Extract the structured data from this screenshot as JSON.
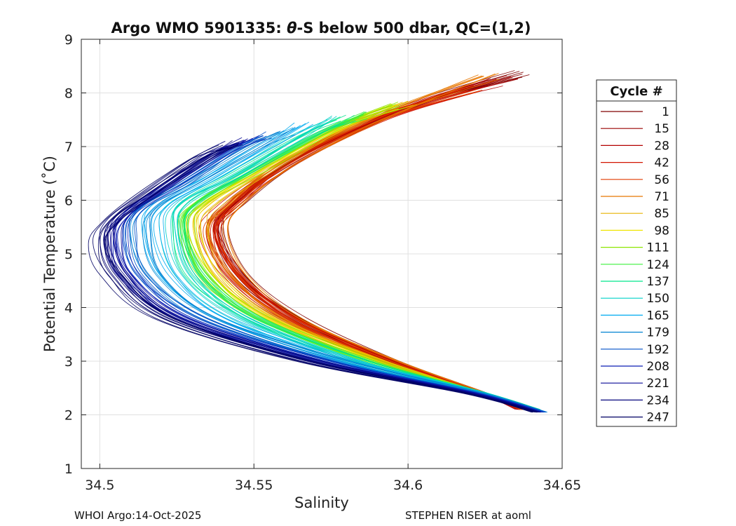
{
  "chart_data": {
    "type": "line",
    "title_prefix": "Argo WMO 5901335: ",
    "title_symbol": "θ",
    "title_suffix": "-S below 500 dbar,  QC=(1,2)",
    "xlabel": "Salinity",
    "ylabel": "Potential Temperature (˚C)",
    "xlim": [
      34.494,
      34.65
    ],
    "ylim": [
      1,
      9
    ],
    "x_ticks": [
      34.5,
      34.55,
      34.6,
      34.65
    ],
    "x_tick_labels": [
      "34.5",
      "34.55",
      "34.6",
      "34.65"
    ],
    "y_ticks": [
      1,
      2,
      3,
      4,
      5,
      6,
      7,
      8,
      9
    ],
    "y_tick_labels": [
      "1",
      "2",
      "3",
      "4",
      "5",
      "6",
      "7",
      "8",
      "9"
    ],
    "grid": true,
    "legend_title": "Cycle #",
    "legend_position": "right",
    "series": [
      {
        "name": "1",
        "color": "#800000",
        "profile": [
          [
            34.637,
            8.35
          ],
          [
            34.6,
            7.75
          ],
          [
            34.565,
            6.8
          ],
          [
            34.545,
            6.0
          ],
          [
            34.539,
            5.5
          ],
          [
            34.546,
            4.6
          ],
          [
            34.565,
            3.8
          ],
          [
            34.595,
            3.0
          ],
          [
            34.625,
            2.4
          ],
          [
            34.637,
            2.1
          ]
        ]
      },
      {
        "name": "15",
        "color": "#9a0000",
        "profile": [
          [
            34.634,
            8.3
          ],
          [
            34.598,
            7.7
          ],
          [
            34.563,
            6.75
          ],
          [
            34.544,
            5.95
          ],
          [
            34.538,
            5.45
          ],
          [
            34.545,
            4.6
          ],
          [
            34.563,
            3.8
          ],
          [
            34.594,
            3.0
          ],
          [
            34.624,
            2.4
          ],
          [
            34.636,
            2.1
          ]
        ]
      },
      {
        "name": "28",
        "color": "#b40000",
        "profile": [
          [
            34.628,
            8.2
          ],
          [
            34.595,
            7.62
          ],
          [
            34.562,
            6.7
          ],
          [
            34.543,
            5.9
          ],
          [
            34.537,
            5.4
          ],
          [
            34.544,
            4.6
          ],
          [
            34.562,
            3.8
          ],
          [
            34.593,
            3.0
          ],
          [
            34.624,
            2.4
          ],
          [
            34.636,
            2.1
          ]
        ]
      },
      {
        "name": "42",
        "color": "#d21400",
        "profile": [
          [
            34.62,
            8.05
          ],
          [
            34.59,
            7.5
          ],
          [
            34.56,
            6.65
          ],
          [
            34.542,
            5.9
          ],
          [
            34.536,
            5.4
          ],
          [
            34.543,
            4.6
          ],
          [
            34.561,
            3.8
          ],
          [
            34.593,
            3.0
          ],
          [
            34.624,
            2.4
          ],
          [
            34.637,
            2.1
          ]
        ]
      },
      {
        "name": "56",
        "color": "#e03c00",
        "profile": [
          [
            34.622,
            8.1
          ],
          [
            34.592,
            7.55
          ],
          [
            34.561,
            6.7
          ],
          [
            34.543,
            5.92
          ],
          [
            34.537,
            5.42
          ],
          [
            34.544,
            4.6
          ],
          [
            34.562,
            3.8
          ],
          [
            34.593,
            3.0
          ],
          [
            34.624,
            2.4
          ],
          [
            34.637,
            2.1
          ]
        ]
      },
      {
        "name": "71",
        "color": "#e87800",
        "profile": [
          [
            34.626,
            8.3
          ],
          [
            34.594,
            7.62
          ],
          [
            34.562,
            6.72
          ],
          [
            34.544,
            5.93
          ],
          [
            34.538,
            5.42
          ],
          [
            34.545,
            4.6
          ],
          [
            34.562,
            3.8
          ],
          [
            34.594,
            3.0
          ],
          [
            34.625,
            2.4
          ],
          [
            34.638,
            2.1
          ]
        ]
      },
      {
        "name": "85",
        "color": "#e6b400",
        "profile": [
          [
            34.6,
            7.8
          ],
          [
            34.58,
            7.4
          ],
          [
            34.556,
            6.65
          ],
          [
            34.537,
            5.95
          ],
          [
            34.532,
            5.5
          ],
          [
            34.538,
            4.6
          ],
          [
            34.556,
            3.8
          ],
          [
            34.59,
            3.0
          ],
          [
            34.624,
            2.4
          ],
          [
            34.638,
            2.1
          ]
        ]
      },
      {
        "name": "98",
        "color": "#f0e600",
        "profile": [
          [
            34.595,
            7.75
          ],
          [
            34.577,
            7.35
          ],
          [
            34.553,
            6.6
          ],
          [
            34.534,
            5.95
          ],
          [
            34.529,
            5.5
          ],
          [
            34.536,
            4.6
          ],
          [
            34.554,
            3.8
          ],
          [
            34.589,
            3.0
          ],
          [
            34.624,
            2.4
          ],
          [
            34.639,
            2.1
          ]
        ]
      },
      {
        "name": "111",
        "color": "#8ce600",
        "profile": [
          [
            34.597,
            7.78
          ],
          [
            34.578,
            7.38
          ],
          [
            34.553,
            6.62
          ],
          [
            34.533,
            5.95
          ],
          [
            34.528,
            5.5
          ],
          [
            34.534,
            4.6
          ],
          [
            34.552,
            3.8
          ],
          [
            34.588,
            3.0
          ],
          [
            34.625,
            2.4
          ],
          [
            34.64,
            2.1
          ]
        ]
      },
      {
        "name": "124",
        "color": "#3cf03c",
        "profile": [
          [
            34.585,
            7.58
          ],
          [
            34.571,
            7.25
          ],
          [
            34.549,
            6.55
          ],
          [
            34.531,
            5.95
          ],
          [
            34.527,
            5.5
          ],
          [
            34.533,
            4.6
          ],
          [
            34.551,
            3.8
          ],
          [
            34.587,
            3.0
          ],
          [
            34.625,
            2.4
          ],
          [
            34.641,
            2.1
          ]
        ]
      },
      {
        "name": "137",
        "color": "#00e68c",
        "profile": [
          [
            34.58,
            7.55
          ],
          [
            34.567,
            7.2
          ],
          [
            34.546,
            6.5
          ],
          [
            34.529,
            5.95
          ],
          [
            34.526,
            5.5
          ],
          [
            34.531,
            4.6
          ],
          [
            34.549,
            3.8
          ],
          [
            34.585,
            3.0
          ],
          [
            34.625,
            2.4
          ],
          [
            34.642,
            2.1
          ]
        ]
      },
      {
        "name": "150",
        "color": "#00d2c8",
        "profile": [
          [
            34.575,
            7.5
          ],
          [
            34.563,
            7.15
          ],
          [
            34.542,
            6.45
          ],
          [
            34.526,
            5.95
          ],
          [
            34.523,
            5.5
          ],
          [
            34.528,
            4.6
          ],
          [
            34.546,
            3.8
          ],
          [
            34.583,
            3.0
          ],
          [
            34.625,
            2.4
          ],
          [
            34.643,
            2.05
          ]
        ]
      },
      {
        "name": "165",
        "color": "#00aaf0",
        "profile": [
          [
            34.566,
            7.4
          ],
          [
            34.555,
            7.05
          ],
          [
            34.535,
            6.4
          ],
          [
            34.52,
            5.9
          ],
          [
            34.517,
            5.45
          ],
          [
            34.522,
            4.6
          ],
          [
            34.54,
            3.8
          ],
          [
            34.58,
            3.0
          ],
          [
            34.624,
            2.4
          ],
          [
            34.644,
            2.05
          ]
        ]
      },
      {
        "name": "179",
        "color": "#0082d2",
        "profile": [
          [
            34.56,
            7.3
          ],
          [
            34.55,
            7.0
          ],
          [
            34.531,
            6.35
          ],
          [
            34.516,
            5.85
          ],
          [
            34.513,
            5.4
          ],
          [
            34.518,
            4.6
          ],
          [
            34.536,
            3.8
          ],
          [
            34.578,
            3.0
          ],
          [
            34.624,
            2.4
          ],
          [
            34.644,
            2.05
          ]
        ]
      },
      {
        "name": "192",
        "color": "#0050c8",
        "profile": [
          [
            34.553,
            7.22
          ],
          [
            34.544,
            6.95
          ],
          [
            34.526,
            6.3
          ],
          [
            34.512,
            5.8
          ],
          [
            34.509,
            5.35
          ],
          [
            34.513,
            4.6
          ],
          [
            34.532,
            3.8
          ],
          [
            34.575,
            3.0
          ],
          [
            34.623,
            2.4
          ],
          [
            34.644,
            2.05
          ]
        ]
      },
      {
        "name": "208",
        "color": "#0a1eb4",
        "profile": [
          [
            34.55,
            7.15
          ],
          [
            34.54,
            6.9
          ],
          [
            34.522,
            6.25
          ],
          [
            34.509,
            5.75
          ],
          [
            34.506,
            5.3
          ],
          [
            34.51,
            4.6
          ],
          [
            34.528,
            3.8
          ],
          [
            34.572,
            3.0
          ],
          [
            34.622,
            2.4
          ],
          [
            34.643,
            2.05
          ]
        ]
      },
      {
        "name": "221",
        "color": "#0a0a96",
        "profile": [
          [
            34.546,
            7.1
          ],
          [
            34.536,
            6.85
          ],
          [
            34.519,
            6.2
          ],
          [
            34.507,
            5.7
          ],
          [
            34.504,
            5.3
          ],
          [
            34.508,
            4.6
          ],
          [
            34.525,
            3.8
          ],
          [
            34.57,
            3.0
          ],
          [
            34.621,
            2.4
          ],
          [
            34.642,
            2.05
          ]
        ]
      },
      {
        "name": "234",
        "color": "#05057d",
        "profile": [
          [
            34.544,
            7.05
          ],
          [
            34.534,
            6.8
          ],
          [
            34.517,
            6.15
          ],
          [
            34.505,
            5.65
          ],
          [
            34.502,
            5.25
          ],
          [
            34.506,
            4.6
          ],
          [
            34.523,
            3.8
          ],
          [
            34.568,
            3.0
          ],
          [
            34.62,
            2.4
          ],
          [
            34.642,
            2.05
          ]
        ]
      },
      {
        "name": "247",
        "color": "#000064",
        "profile": [
          [
            34.542,
            7.0
          ],
          [
            34.532,
            6.75
          ],
          [
            34.515,
            6.1
          ],
          [
            34.503,
            5.6
          ],
          [
            34.5,
            5.2
          ],
          [
            34.504,
            4.6
          ],
          [
            34.521,
            3.8
          ],
          [
            34.566,
            3.0
          ],
          [
            34.619,
            2.4
          ],
          [
            34.641,
            2.05
          ]
        ]
      }
    ]
  },
  "footer": {
    "left": "WHOI Argo:14-Oct-2025",
    "right": "STEPHEN RISER at aoml"
  }
}
